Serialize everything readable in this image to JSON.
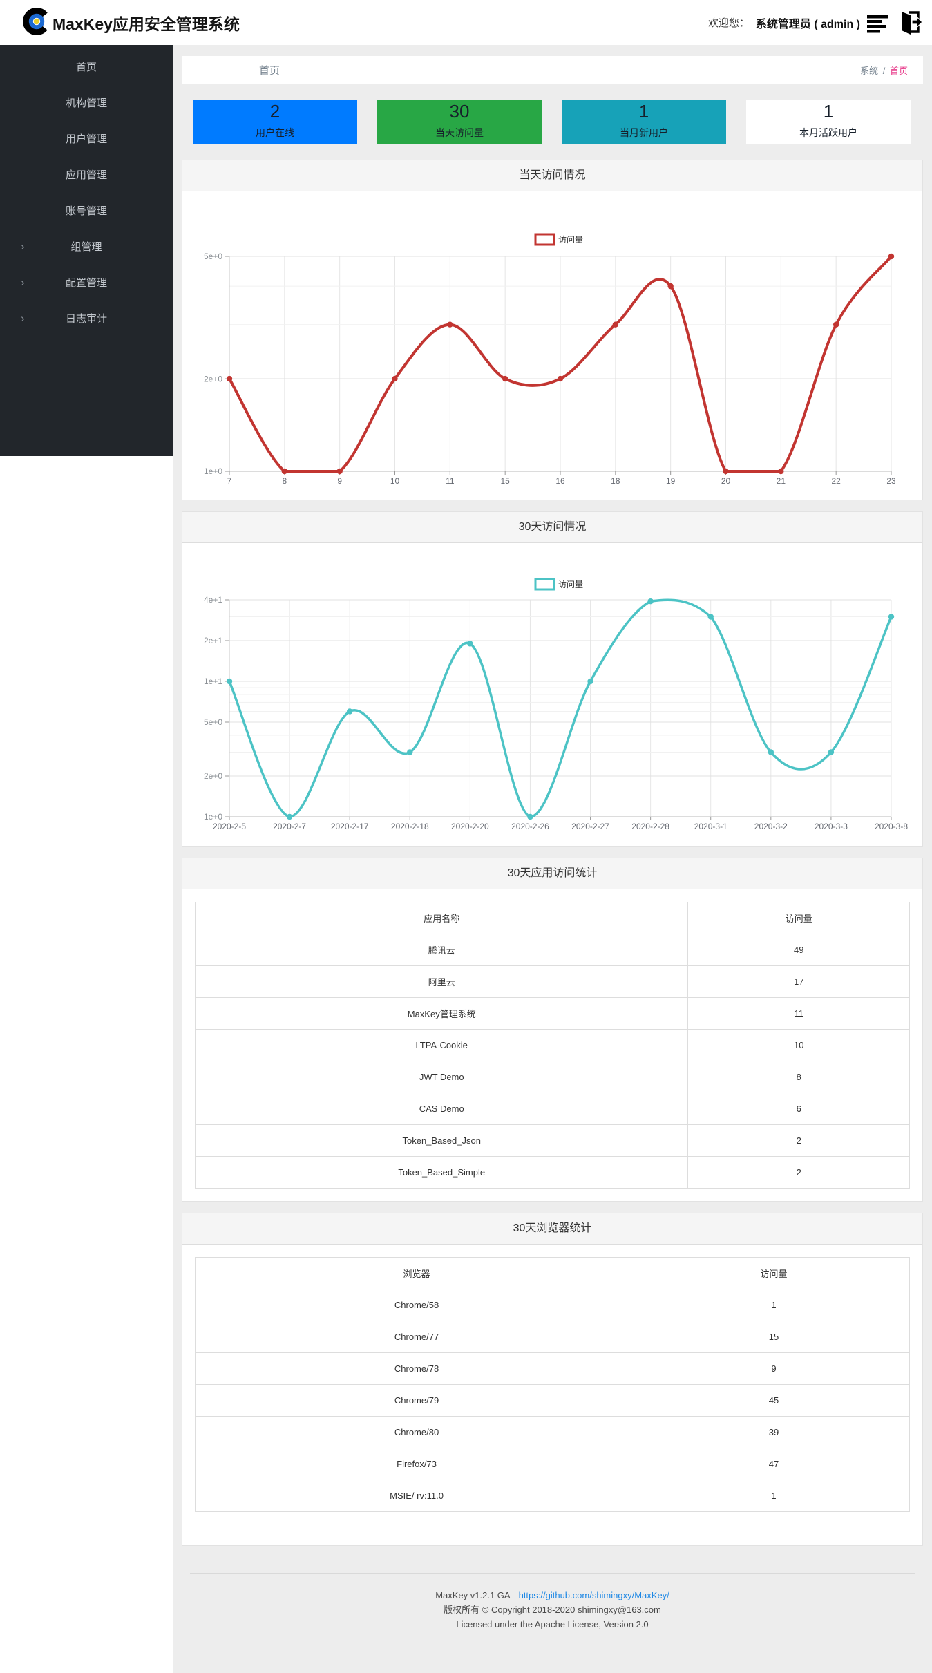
{
  "header": {
    "app_title": "MaxKey应用安全管理系统",
    "welcome_label": "欢迎您：",
    "user_label": "系统管理员 ( admin )"
  },
  "sidebar": {
    "items": [
      {
        "label": "首页",
        "expandable": false
      },
      {
        "label": "机构管理",
        "expandable": false
      },
      {
        "label": "用户管理",
        "expandable": false
      },
      {
        "label": "应用管理",
        "expandable": false
      },
      {
        "label": "账号管理",
        "expandable": false
      },
      {
        "label": "组管理",
        "expandable": true
      },
      {
        "label": "配置管理",
        "expandable": true
      },
      {
        "label": "日志审计",
        "expandable": true
      }
    ]
  },
  "breadcrumb": {
    "page_title": "首页",
    "path_root": "系统",
    "separator": "/",
    "path_current": "首页",
    "current_color": "#e83e8c"
  },
  "stat_cards": [
    {
      "value": "2",
      "label": "用户在线",
      "bg": "#007bff"
    },
    {
      "value": "30",
      "label": "当天访问量",
      "bg": "#28a745"
    },
    {
      "value": "1",
      "label": "当月新用户",
      "bg": "#17a2b8"
    },
    {
      "value": "1",
      "label": "本月活跃用户",
      "bg": "#ffffff"
    }
  ],
  "chart_data": [
    {
      "type": "line",
      "title": "当天访问情况",
      "legend": "访问量",
      "color": "#c23531",
      "yscale": "log",
      "ylim": [
        1,
        5
      ],
      "grid": true,
      "legend_position": "top-center",
      "categories": [
        "7",
        "8",
        "9",
        "10",
        "11",
        "15",
        "16",
        "18",
        "19",
        "20",
        "21",
        "22",
        "23"
      ],
      "values": [
        2,
        1,
        1,
        2,
        3,
        2,
        2,
        3,
        4,
        1,
        1,
        3,
        5
      ],
      "yticks": [
        {
          "v": 5,
          "label": "5e+0"
        },
        {
          "v": 2,
          "label": "2e+0"
        },
        {
          "v": 1,
          "label": "1e+0"
        }
      ],
      "minor_gridlines": [
        3,
        4
      ]
    },
    {
      "type": "line",
      "title": "30天访问情况",
      "legend": "访问量",
      "color": "#4cc3c5",
      "yscale": "log",
      "ylim": [
        1,
        40
      ],
      "grid": true,
      "legend_position": "top-center",
      "categories": [
        "2020-2-5",
        "2020-2-7",
        "2020-2-17",
        "2020-2-18",
        "2020-2-20",
        "2020-2-26",
        "2020-2-27",
        "2020-2-28",
        "2020-3-1",
        "2020-3-2",
        "2020-3-3",
        "2020-3-8"
      ],
      "values": [
        10,
        1,
        6,
        3,
        19,
        1,
        10,
        39,
        30,
        3,
        3,
        30
      ],
      "yticks": [
        {
          "v": 40,
          "label": "4e+1"
        },
        {
          "v": 20,
          "label": "2e+1"
        },
        {
          "v": 10,
          "label": "1e+1"
        },
        {
          "v": 5,
          "label": "5e+0"
        },
        {
          "v": 2,
          "label": "2e+0"
        },
        {
          "v": 1,
          "label": "1e+0"
        }
      ],
      "minor_gridlines": [
        3,
        4,
        6,
        7,
        8,
        9,
        30
      ]
    }
  ],
  "tables": [
    {
      "title": "30天应用访问统计",
      "headers": [
        "应用名称",
        "访问量"
      ],
      "col1_width": "69%",
      "rows": [
        [
          "腾讯云",
          "49"
        ],
        [
          "阿里云",
          "17"
        ],
        [
          "MaxKey管理系统",
          "11"
        ],
        [
          "LTPA-Cookie",
          "10"
        ],
        [
          "JWT Demo",
          "8"
        ],
        [
          "CAS Demo",
          "6"
        ],
        [
          "Token_Based_Json",
          "2"
        ],
        [
          "Token_Based_Simple",
          "2"
        ]
      ]
    },
    {
      "title": "30天浏览器统计",
      "headers": [
        "浏览器",
        "访问量"
      ],
      "col1_width": "62%",
      "rows": [
        [
          "Chrome/58",
          "1"
        ],
        [
          "Chrome/77",
          "15"
        ],
        [
          "Chrome/78",
          "9"
        ],
        [
          "Chrome/79",
          "45"
        ],
        [
          "Chrome/80",
          "39"
        ],
        [
          "Firefox/73",
          "47"
        ],
        [
          "MSIE/ rv:11.0",
          "1"
        ]
      ]
    }
  ],
  "footer": {
    "line1_left": "MaxKey  v1.2.1 GA",
    "line1_link": "https://github.com/shimingxy/MaxKey/",
    "line2": "版权所有 © Copyright 2018-2020 shimingxy@163.com",
    "line3": "Licensed under the Apache License, Version 2.0"
  }
}
